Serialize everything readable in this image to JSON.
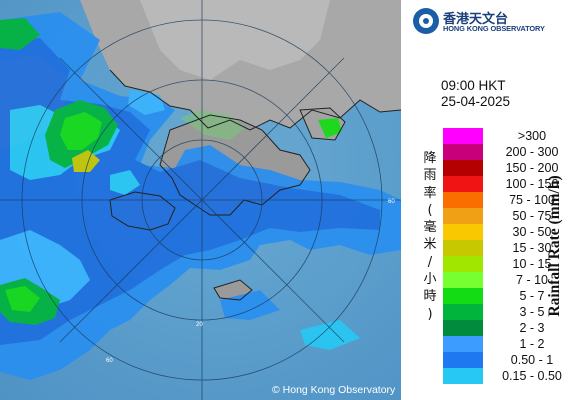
{
  "header": {
    "organisation_cn": "香港天文台",
    "organisation_en": "HONG KONG OBSERVATORY"
  },
  "timestamp": {
    "time": "09:00 HKT",
    "date": "25-04-2025"
  },
  "legend": {
    "title_en": "Rainfall Rate (mm/h)",
    "title_cn": "降雨率(毫米/小時)",
    "items": [
      {
        "label": ">300",
        "color": "#ff00ff"
      },
      {
        "label": "200 - 300",
        "color": "#c8007a"
      },
      {
        "label": "150 - 200",
        "color": "#b40000"
      },
      {
        "label": "100 - 150",
        "color": "#f01414"
      },
      {
        "label": "75 - 100",
        "color": "#fa6e00"
      },
      {
        "label": "50 - 75",
        "color": "#f0a014"
      },
      {
        "label": "30 - 50",
        "color": "#fac800"
      },
      {
        "label": "15 - 30",
        "color": "#c8c800"
      },
      {
        "label": "10 - 15",
        "color": "#a0e600"
      },
      {
        "label": "7 - 10",
        "color": "#78ff32"
      },
      {
        "label": "5 - 7",
        "color": "#14dc14"
      },
      {
        "label": "3 - 5",
        "color": "#00b43c"
      },
      {
        "label": "2 - 3",
        "color": "#008c3c"
      },
      {
        "label": "1 - 2",
        "color": "#3c9cff"
      },
      {
        "label": "0.50 - 1",
        "color": "#1e78f0"
      },
      {
        "label": "0.15 - 0.50",
        "color": "#28c8f5"
      }
    ]
  },
  "map": {
    "copyright": "© Hong Kong Observatory",
    "range_labels": [
      "20",
      "40",
      "60",
      "60"
    ]
  }
}
